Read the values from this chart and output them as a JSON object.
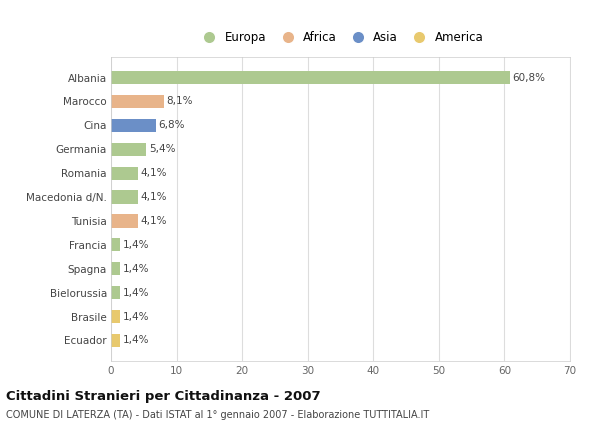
{
  "categories": [
    "Albania",
    "Marocco",
    "Cina",
    "Germania",
    "Romania",
    "Macedonia d/N.",
    "Tunisia",
    "Francia",
    "Spagna",
    "Bielorussia",
    "Brasile",
    "Ecuador"
  ],
  "values": [
    60.8,
    8.1,
    6.8,
    5.4,
    4.1,
    4.1,
    4.1,
    1.4,
    1.4,
    1.4,
    1.4,
    1.4
  ],
  "labels": [
    "60,8%",
    "8,1%",
    "6,8%",
    "5,4%",
    "4,1%",
    "4,1%",
    "4,1%",
    "1,4%",
    "1,4%",
    "1,4%",
    "1,4%",
    "1,4%"
  ],
  "colors": [
    "#adc990",
    "#e8b48a",
    "#6b8fc7",
    "#adc990",
    "#adc990",
    "#adc990",
    "#e8b48a",
    "#adc990",
    "#adc990",
    "#adc990",
    "#e8c96e",
    "#e8c96e"
  ],
  "legend_labels": [
    "Europa",
    "Africa",
    "Asia",
    "America"
  ],
  "legend_colors": [
    "#adc990",
    "#e8b48a",
    "#6b8fc7",
    "#e8c96e"
  ],
  "title": "Cittadini Stranieri per Cittadinanza - 2007",
  "subtitle": "COMUNE DI LATERZA (TA) - Dati ISTAT al 1° gennaio 2007 - Elaborazione TUTTITALIA.IT",
  "xlim": [
    0,
    70
  ],
  "xticks": [
    0,
    10,
    20,
    30,
    40,
    50,
    60,
    70
  ],
  "bg_color": "#ffffff",
  "plot_bg_color": "#ffffff",
  "grid_color": "#dddddd",
  "bar_height": 0.55
}
